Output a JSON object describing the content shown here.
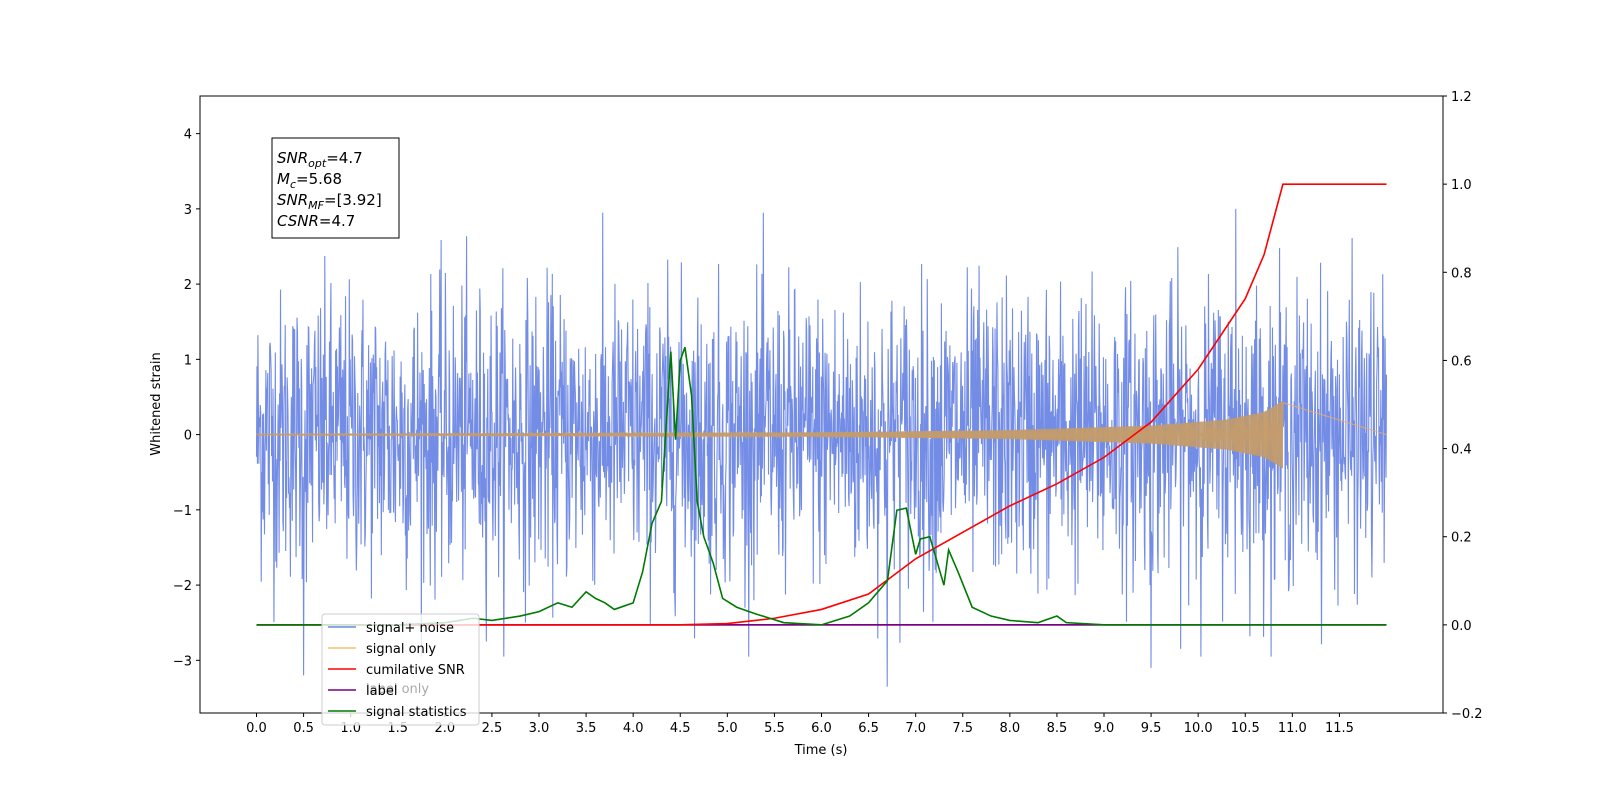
{
  "chart_data": {
    "type": "line",
    "title": "",
    "xlabel": "Time (s)",
    "ylabel": "Whitened strain",
    "ylabel_right": "",
    "x_range": [
      0,
      12
    ],
    "xlim": [
      -0.6,
      12.6
    ],
    "ylim": [
      -3.7,
      4.5
    ],
    "ylim_right": [
      -0.2,
      1.2
    ],
    "x_ticks": [
      0.0,
      0.5,
      1.0,
      1.5,
      2.0,
      2.5,
      3.0,
      3.5,
      4.0,
      4.5,
      5.0,
      5.5,
      6.0,
      6.5,
      7.0,
      7.5,
      8.0,
      8.5,
      9.0,
      9.5,
      10.0,
      10.5,
      11.0,
      11.5
    ],
    "x_tick_labels": [
      "0.0",
      "0.5",
      "1.0",
      "1.5",
      "2.0",
      "2.5",
      "3.0",
      "3.5",
      "4.0",
      "4.5",
      "5.0",
      "5.5",
      "6.0",
      "6.5",
      "7.0",
      "7.5",
      "8.0",
      "8.5",
      "9.0",
      "9.5",
      "10.0",
      "10.5",
      "11.0",
      "11.5"
    ],
    "y_ticks": [
      -3,
      -2,
      -1,
      0,
      1,
      2,
      3,
      4
    ],
    "y_tick_labels": [
      "−3",
      "−2",
      "−1",
      "0",
      "1",
      "2",
      "3",
      "4"
    ],
    "y_ticks_right": [
      -0.2,
      0.0,
      0.2,
      0.4,
      0.6,
      0.8,
      1.0,
      1.2
    ],
    "y_tick_labels_right": [
      "−0.2",
      "0.0",
      "0.2",
      "0.4",
      "0.6",
      "0.8",
      "1.0",
      "1.2"
    ],
    "grid": false,
    "legend_position": "bottom-left",
    "series": [
      {
        "name": "signal+ noise",
        "axis": "left",
        "color": "#6b86e4",
        "kind": "noise",
        "x_range": [
          0,
          12
        ],
        "typical_extent": [
          -1.5,
          1.5
        ],
        "notable_peaks": [
          [
            0.5,
            4.1
          ],
          [
            6.7,
            3.2
          ],
          [
            6.7,
            -3.35
          ],
          [
            0.5,
            -3.2
          ],
          [
            10.4,
            3.0
          ],
          [
            9.5,
            -3.1
          ]
        ]
      },
      {
        "name": "signal only",
        "axis": "left",
        "color": "#e8b060",
        "kind": "chirp",
        "x_range": [
          0,
          10.9
        ],
        "envelope": [
          [
            0,
            0.01
          ],
          [
            6.0,
            0.03
          ],
          [
            8.0,
            0.06
          ],
          [
            9.5,
            0.12
          ],
          [
            10.3,
            0.2
          ],
          [
            10.7,
            0.3
          ],
          [
            10.9,
            0.45
          ]
        ]
      },
      {
        "name": "cumilative SNR",
        "axis": "right",
        "color": "#ff0000",
        "x": [
          0,
          4.5,
          5.0,
          5.5,
          6.0,
          6.5,
          7.0,
          7.5,
          8.0,
          8.5,
          9.0,
          9.5,
          10.0,
          10.5,
          10.7,
          10.9,
          12.0
        ],
        "values": [
          0.0,
          0.0,
          0.003,
          0.015,
          0.035,
          0.07,
          0.15,
          0.21,
          0.27,
          0.32,
          0.38,
          0.46,
          0.58,
          0.74,
          0.84,
          1.0,
          1.0
        ]
      },
      {
        "name": "label",
        "axis": "right",
        "color": "#7b0080",
        "x": [
          0,
          12
        ],
        "values": [
          0,
          0
        ]
      },
      {
        "name": "label only",
        "axis": "right",
        "color": "#7b0080",
        "x": [
          0,
          12
        ],
        "values": [
          0,
          0
        ]
      },
      {
        "name": "signal statistics",
        "axis": "right",
        "color": "#007a00",
        "x": [
          0,
          1.5,
          2.0,
          2.3,
          2.5,
          2.8,
          3.0,
          3.2,
          3.35,
          3.5,
          3.6,
          3.7,
          3.8,
          4.0,
          4.1,
          4.2,
          4.3,
          4.4,
          4.45,
          4.5,
          4.55,
          4.62,
          4.68,
          4.75,
          4.85,
          4.95,
          5.1,
          5.3,
          5.6,
          6.0,
          6.3,
          6.5,
          6.7,
          6.8,
          6.9,
          7.0,
          7.05,
          7.15,
          7.3,
          7.35,
          7.45,
          7.6,
          7.8,
          8.0,
          8.3,
          8.5,
          8.6,
          9.0,
          12.0
        ],
        "values": [
          0.0,
          0.0,
          0.005,
          0.015,
          0.01,
          0.02,
          0.03,
          0.05,
          0.04,
          0.075,
          0.06,
          0.05,
          0.035,
          0.05,
          0.12,
          0.23,
          0.28,
          0.62,
          0.42,
          0.6,
          0.63,
          0.52,
          0.28,
          0.2,
          0.14,
          0.06,
          0.04,
          0.025,
          0.005,
          0.0,
          0.02,
          0.05,
          0.1,
          0.26,
          0.265,
          0.16,
          0.195,
          0.2,
          0.09,
          0.17,
          0.12,
          0.04,
          0.02,
          0.01,
          0.005,
          0.02,
          0.005,
          0.0,
          0.0
        ]
      }
    ],
    "stats_box": [
      {
        "base": "SNR",
        "sub": "opt",
        "value": "=4.7"
      },
      {
        "base": "M",
        "sub": "c",
        "value": "=5.68"
      },
      {
        "base": "SNR",
        "sub": "MF",
        "value": "=[3.92]"
      },
      {
        "base": "CSNR",
        "sub": "",
        "value": "=4.7"
      }
    ]
  }
}
